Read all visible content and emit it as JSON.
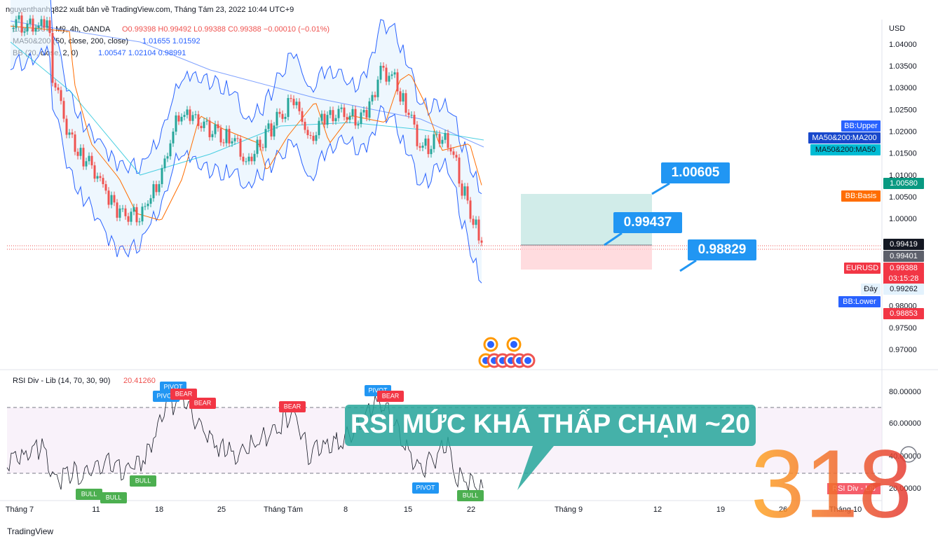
{
  "header": {
    "attribution": "nguyenthanhq822 xuất bản về TradingView.com, Tháng Tám 23, 2022 10:44 UTC+9"
  },
  "legend": {
    "symbol": "Euro / Đô la Mỹ, 4h, OANDA",
    "ohlc": "O0.99398  H0.99492  L0.99388  C0.99388  −0.00010 (−0.01%)",
    "ma": "MA50&200 (50, close, 200, close)",
    "ma_values": "1.01655  1.01592",
    "bb": "BB (20, close, 2, 0)",
    "bb_values": "1.00547  1.02104  0.98991"
  },
  "price_axis": {
    "unit": "USD",
    "ticks": [
      "1.04000",
      "1.03500",
      "1.03000",
      "1.02500",
      "1.02000",
      "1.01500",
      "1.01000",
      "1.00500",
      "1.00000",
      "0.98000",
      "0.97500",
      "0.97000"
    ]
  },
  "badges": [
    "BB:Upper",
    "MA50&200:MA200",
    "MA50&200:MA50",
    "1.00580",
    "BB:Basis",
    "0.99419",
    "0.99401",
    "EURUSD",
    "0.99388",
    "03:15:28",
    "Đáy",
    "0.99262",
    "BB:Lower",
    "0.98853"
  ],
  "position": {
    "target": "1.00605",
    "entry": "0.99437",
    "stop": "0.98829"
  },
  "rsi": {
    "title": "RSI Div - Lib (14, 70, 30, 90)",
    "value": "20.41260",
    "ticks": [
      "80.00000",
      "60.00000",
      "40.00000",
      "20.00000"
    ],
    "annotation": "RSI MỨC KHÁ THẤP CHẠM ~20",
    "tag": "RSI Div - Lib",
    "signals": [
      "PIVOT",
      "PIVOT",
      "BEAR",
      "BEAR",
      "BEAR",
      "PIVOT",
      "BEAR",
      "BULL",
      "PIVOT",
      "BULL",
      "BULL",
      "BULL"
    ]
  },
  "time_axis": [
    "Tháng 7",
    "11",
    "18",
    "25",
    "Tháng Tám",
    "8",
    "15",
    "22",
    "Tháng 9",
    "12",
    "19",
    "26",
    "Tháng 10"
  ],
  "footer": {
    "brand": "TradingView"
  },
  "watermark": "318"
}
